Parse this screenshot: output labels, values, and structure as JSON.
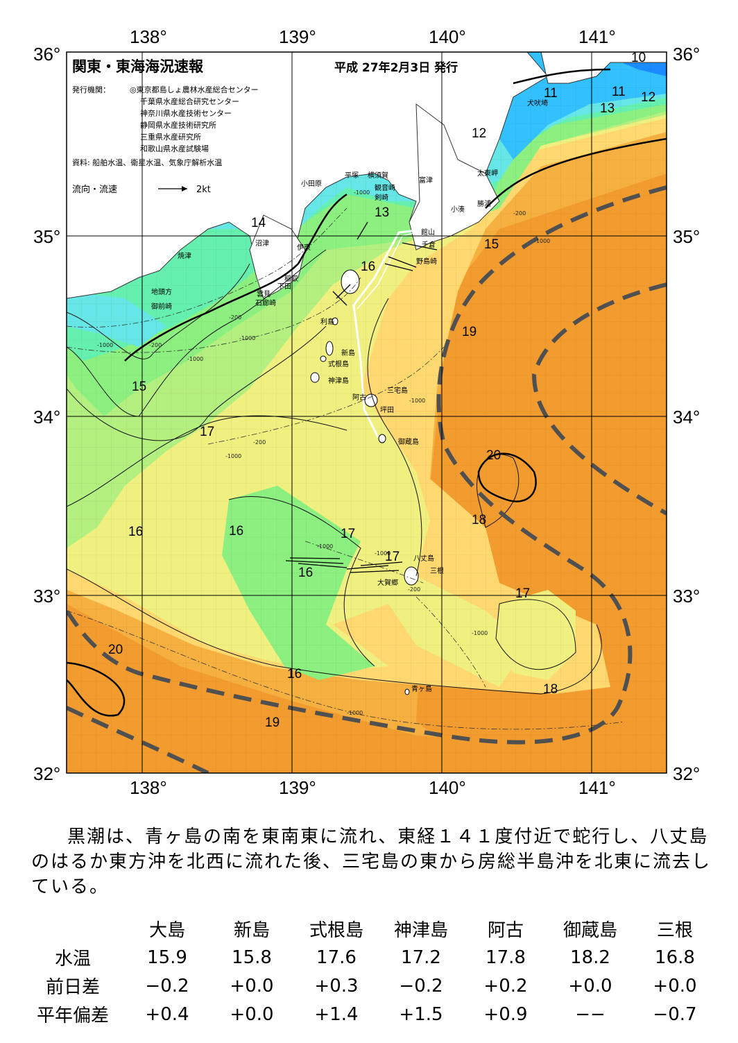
{
  "title": "関東・東海海況速報",
  "issue_date": "平成 27年2月3日 発行",
  "publisher": {
    "label": "発行機関：",
    "orgs": [
      "◎東京都島しょ農林水産総合センター",
      "千葉県水産総合研究センター",
      "神奈川県水産技術センター",
      "静岡県水産技術研究所",
      "三重県水産研究所",
      "和歌山県水産試験場"
    ]
  },
  "source": "資料: 船舶水温、衛星水温、気象庁解析水温",
  "flow_legend": {
    "label": "流向・流速",
    "unit": "2kt"
  },
  "axes": {
    "longitudes": [
      "138°",
      "139°",
      "140°",
      "141°"
    ],
    "latitudes": [
      "36°",
      "35°",
      "34°",
      "33°",
      "32°"
    ]
  },
  "isotherm_labels": [
    "10",
    "11",
    "11",
    "12",
    "13",
    "12",
    "13",
    "14",
    "15",
    "16",
    "19",
    "15",
    "17",
    "20",
    "18",
    "16",
    "16",
    "17",
    "17",
    "16",
    "17",
    "20",
    "16",
    "18",
    "19"
  ],
  "depth_labels": [
    "-1000",
    "-200",
    "-1000",
    "-200",
    "-1000",
    "-1000",
    "-200",
    "-1000",
    "-1000",
    "-1000",
    "-1000",
    "-200",
    "-1000",
    "-200",
    "-1000",
    "-1000"
  ],
  "places": {
    "inubozaki": "犬吠埼",
    "taitozaki": "太東岬",
    "katsuura": "勝浦",
    "kominato": "小湊",
    "futtsu": "富津",
    "yokosuka": "横須賀",
    "kannonzaki": "観音崎",
    "tsurugizaki": "剣崎",
    "hiratsuka": "平塚",
    "odawara": "小田原",
    "tateyama": "館山",
    "chikura": "千倉",
    "nojimazaki": "野島崎",
    "numazu": "沼津",
    "ito": "伊東",
    "yaizu": "焼津",
    "inatori": "稲取",
    "shimoda": "下田",
    "kumomi": "雲見",
    "irozaki": "石廊崎",
    "jitogata": "地頭方",
    "omaezaki": "御前崎",
    "toshima": "利島",
    "niijima": "新島",
    "shikinejima": "式根島",
    "kozushima": "神津島",
    "miyakejima": "三宅島",
    "ako": "阿古",
    "tsubota": "坪田",
    "mikurajima": "御蔵島",
    "hachijojima": "八丈島",
    "sane": "三根",
    "okago": "大賀郷",
    "aogashima": "青ヶ島"
  },
  "kuroshio_description": "黒潮は、青ヶ島の南を東南東に流れ、東経１４１度付近で蛇行し、八丈島のはるか東方沖を北西に流れた後、三宅島の東から房総半島沖を北東に流去している。",
  "table": {
    "stations": [
      "大島",
      "新島",
      "式根島",
      "神津島",
      "阿古",
      "御蔵島",
      "三根"
    ],
    "rows": [
      {
        "label": "水温",
        "values": [
          "15.9",
          "15.8",
          "17.6",
          "17.2",
          "17.8",
          "18.2",
          "16.8"
        ]
      },
      {
        "label": "前日差",
        "values": [
          "−0.2",
          "+0.0",
          "+0.3",
          "−0.2",
          "+0.2",
          "+0.0",
          "+0.0"
        ]
      },
      {
        "label": "平年偏差",
        "values": [
          "+0.4",
          "+0.0",
          "+1.4",
          "+1.5",
          "+0.9",
          "−−",
          "−0.7"
        ]
      }
    ]
  },
  "colors": {
    "t10": "#1a8cff",
    "t12": "#33c0ff",
    "t13": "#66e6e6",
    "t14": "#66f0b0",
    "t15": "#8cf080",
    "t16": "#b4f080",
    "t17": "#f0f080",
    "t18": "#ffd870",
    "t19": "#f6b040",
    "t20": "#f29c30",
    "land": "#ffffff",
    "kuroshio_axis": "#505050"
  }
}
